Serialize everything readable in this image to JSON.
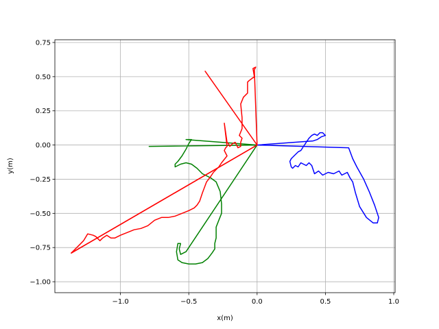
{
  "chart_data": {
    "type": "line",
    "title": "",
    "xlabel": "x(m)",
    "ylabel": "y(m)",
    "xlim": [
      -1.48,
      1.01
    ],
    "ylim": [
      -1.08,
      0.77
    ],
    "xticks": [
      -1.0,
      -0.5,
      0.0,
      0.5,
      1.0
    ],
    "xtick_labels": [
      "−1.0",
      "−0.5",
      "0.0",
      "0.5",
      "1.0"
    ],
    "yticks": [
      -1.0,
      -0.75,
      -0.5,
      -0.25,
      0.0,
      0.25,
      0.5,
      0.75
    ],
    "ytick_labels": [
      "−1.00",
      "−0.75",
      "−0.50",
      "−0.25",
      "0.00",
      "0.25",
      "0.50",
      "0.75"
    ],
    "grid": true,
    "legend": "none",
    "series": [
      {
        "name": "blue",
        "color": "#0000ff",
        "x": [
          0.0,
          0.67,
          0.7,
          0.73,
          0.78,
          0.82,
          0.86,
          0.89,
          0.88,
          0.85,
          0.8,
          0.75,
          0.72,
          0.7,
          0.68,
          0.67,
          0.66,
          0.62,
          0.6,
          0.56,
          0.52,
          0.48,
          0.45,
          0.42,
          0.4,
          0.38,
          0.36,
          0.34,
          0.32,
          0.3,
          0.28,
          0.26,
          0.25,
          0.24,
          0.25,
          0.27,
          0.3,
          0.32,
          0.34,
          0.36,
          0.38,
          0.4,
          0.42,
          0.44,
          0.46,
          0.48,
          0.5,
          0.47,
          0.44,
          0.41,
          0.0
        ],
        "y": [
          0.0,
          -0.02,
          -0.1,
          -0.16,
          -0.25,
          -0.34,
          -0.44,
          -0.53,
          -0.57,
          -0.57,
          -0.53,
          -0.45,
          -0.35,
          -0.27,
          -0.24,
          -0.22,
          -0.2,
          -0.22,
          -0.19,
          -0.21,
          -0.2,
          -0.22,
          -0.19,
          -0.21,
          -0.15,
          -0.13,
          -0.15,
          -0.14,
          -0.13,
          -0.16,
          -0.15,
          -0.17,
          -0.16,
          -0.12,
          -0.1,
          -0.08,
          -0.05,
          -0.04,
          -0.01,
          0.02,
          0.05,
          0.07,
          0.08,
          0.07,
          0.09,
          0.09,
          0.07,
          0.06,
          0.04,
          0.03,
          0.0
        ]
      },
      {
        "name": "green",
        "color": "#008000",
        "x": [
          -0.79,
          0.0,
          -0.52,
          -0.48,
          -0.5,
          -0.52,
          -0.55,
          -0.58,
          -0.6,
          -0.6,
          -0.56,
          -0.52,
          -0.48,
          -0.44,
          -0.4,
          -0.34,
          -0.3,
          -0.27,
          -0.26,
          -0.26,
          -0.28,
          -0.3,
          -0.3,
          -0.3,
          -0.31,
          -0.31,
          -0.33,
          -0.36,
          -0.4,
          -0.45,
          -0.5,
          -0.55,
          -0.58,
          -0.59,
          -0.58,
          -0.56,
          -0.57,
          -0.56,
          -0.52,
          0.0
        ],
        "y": [
          -0.01,
          0.0,
          0.04,
          0.04,
          0.01,
          -0.03,
          -0.08,
          -0.12,
          -0.14,
          -0.16,
          -0.14,
          -0.13,
          -0.14,
          -0.17,
          -0.21,
          -0.24,
          -0.27,
          -0.34,
          -0.43,
          -0.5,
          -0.55,
          -0.6,
          -0.64,
          -0.68,
          -0.72,
          -0.76,
          -0.79,
          -0.83,
          -0.86,
          -0.87,
          -0.87,
          -0.86,
          -0.84,
          -0.78,
          -0.72,
          -0.72,
          -0.76,
          -0.8,
          -0.78,
          0.0
        ]
      },
      {
        "name": "red",
        "color": "#ff0000",
        "x": [
          -0.38,
          0.0,
          -0.02,
          -0.01,
          -0.03,
          -0.02,
          -0.06,
          -0.07,
          -0.07,
          -0.1,
          -0.12,
          -0.11,
          -0.11,
          -0.13,
          -0.11,
          -0.12,
          -0.12,
          -0.14,
          -0.16,
          -0.18,
          -0.2,
          -0.21,
          -0.22,
          -0.24,
          -0.22,
          -0.23,
          -0.24,
          -0.22,
          -0.26,
          -0.28,
          -0.32,
          -0.34,
          -0.37,
          -0.4,
          -0.42,
          -0.44,
          -0.46,
          -0.5,
          -0.55,
          -0.6,
          -0.65,
          -0.7,
          -0.75,
          -0.8,
          -0.85,
          -0.9,
          -0.95,
          -1.0,
          -1.04,
          -1.07,
          -1.1,
          -1.13,
          -1.15,
          -1.18,
          -1.2,
          -1.24,
          -1.27,
          -1.3,
          -1.33,
          -1.36,
          0.0
        ],
        "y": [
          0.54,
          0.0,
          0.55,
          0.57,
          0.56,
          0.5,
          0.47,
          0.46,
          0.38,
          0.35,
          0.3,
          0.2,
          0.12,
          0.07,
          0.05,
          0.02,
          -0.01,
          -0.02,
          0.02,
          0.01,
          -0.01,
          0.01,
          0.02,
          0.16,
          -0.01,
          -0.02,
          -0.04,
          -0.08,
          -0.13,
          -0.16,
          -0.2,
          -0.23,
          -0.27,
          -0.35,
          -0.41,
          -0.44,
          -0.46,
          -0.48,
          -0.5,
          -0.52,
          -0.53,
          -0.53,
          -0.55,
          -0.59,
          -0.61,
          -0.62,
          -0.64,
          -0.66,
          -0.68,
          -0.68,
          -0.66,
          -0.68,
          -0.7,
          -0.67,
          -0.66,
          -0.65,
          -0.7,
          -0.73,
          -0.76,
          -0.79,
          0.0
        ]
      },
      {
        "name": "red-straight",
        "color": "#ff0000",
        "x": [
          -1.36,
          0.0
        ],
        "y": [
          -0.79,
          0.0
        ]
      }
    ]
  }
}
